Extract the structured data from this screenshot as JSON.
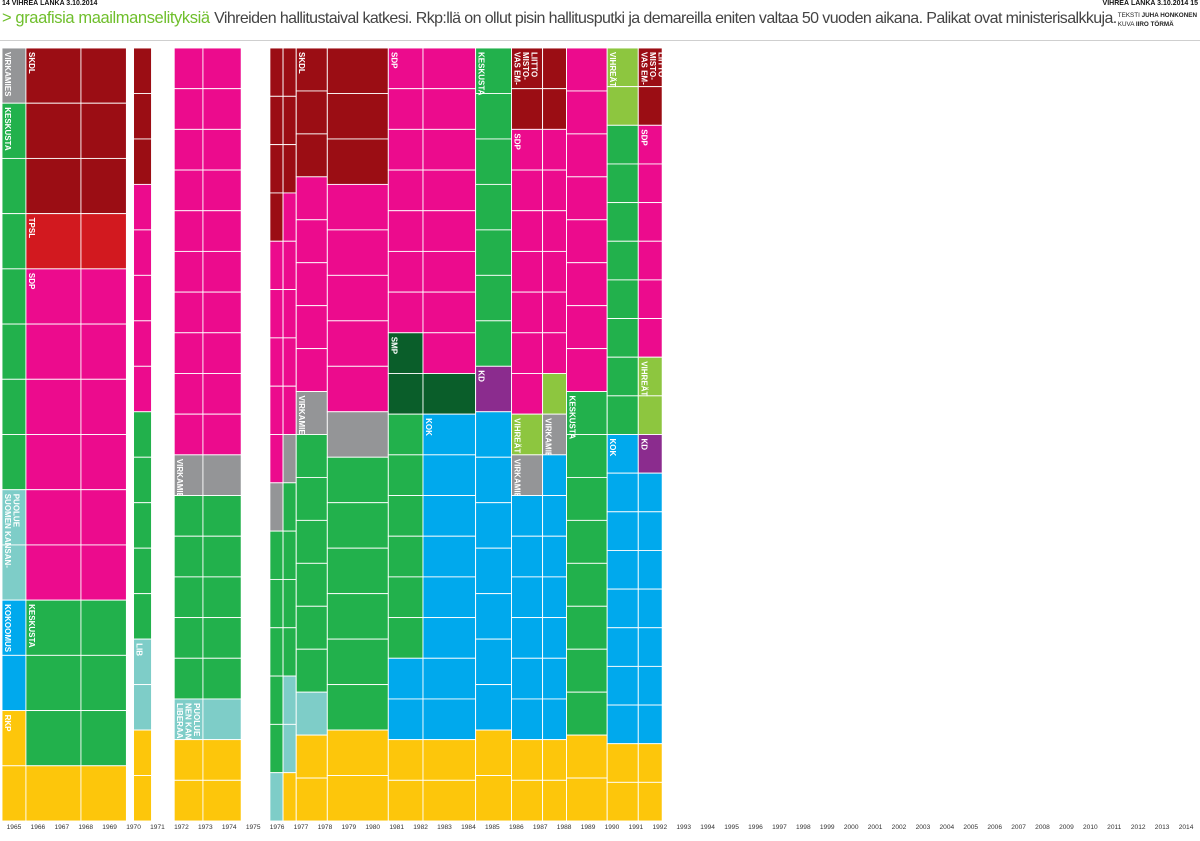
{
  "header": {
    "page_left": "14 VIHREÄ LANKA 3.10.2014",
    "page_right": "VIHREÄ LANKA 3.10.2014 15",
    "kicker": "> graafisia maailmanselityksiä",
    "deck": "Vihreiden hallitustaival katkesi. Rkp:llä on ollut pisin hallitusputki ja demareilla eniten valtaa 50 vuoden aikana. Palikat ovat ministerisalkkuja.",
    "credit_text_label": "TEKSTI",
    "credit_text_name": "JUHA HONKONEN",
    "credit_image_label": "KUVA",
    "credit_image_name": "IIRO TÖRMÄ"
  },
  "chart_data": {
    "type": "stacked-unit",
    "x_labels": [
      "1965",
      "1966",
      "1967",
      "1968",
      "1969",
      "1970",
      "1971",
      "1972",
      "1973",
      "1974",
      "1975",
      "1976",
      "1977",
      "1978",
      "1979",
      "1980",
      "1981",
      "1982",
      "1983",
      "1984",
      "1985",
      "1986",
      "1987",
      "1988",
      "1989",
      "1990",
      "1991",
      "1992",
      "1993",
      "1994",
      "1995",
      "1996",
      "1997",
      "1998",
      "1999",
      "2000",
      "2001",
      "2002",
      "2003",
      "2004",
      "2005",
      "2006",
      "2007",
      "2008",
      "2009",
      "2010",
      "2011",
      "2012",
      "2013",
      "2014"
    ],
    "party_colors": {
      "KESKUSTA": "#22b14c",
      "SKDL": "#9b0d14",
      "TPSL": "#d2191f",
      "SDP": "#ec0b8d",
      "VIRKAMIES": "#949597",
      "SUOMEN KANSANPUOLUE": "#7ecdc8",
      "KOKOOMUS": "#00a9ed",
      "RKP": "#fdc60b",
      "LIB": "#7ecdc8",
      "LIBERAALINEN KANSANPUOLUE": "#7ecdc8",
      "SMP": "#0a5e2a",
      "KD": "#8b2c8e",
      "VAS EM-MISTOLIITTO": "#9b0d14",
      "VIHREÄT": "#8dc63f",
      "KOK": "#00a9ed"
    },
    "cabinets": [
      {
        "from": 0,
        "to": 1,
        "seats": {
          "KESKUSTA": 7,
          "VIRKAMIES": 1,
          "SUOMEN KANSANPUOLUE": 2,
          "KOKOOMUS": 2,
          "RKP": 2
        },
        "labels": [
          "KESKUSTA",
          "VIRKAMIES",
          "SUOMEN KANSANPUOLUE",
          "KOKOOMUS",
          "RKP"
        ]
      },
      {
        "from": 1,
        "to": 3.3,
        "seats": {
          "SKDL": 3,
          "TPSL": 1,
          "SDP": 6,
          "KESKUSTA": 3,
          "RKP": 1
        },
        "labels": [
          "SKDL",
          "TPSL",
          "SDP",
          "KESKUSTA"
        ]
      },
      {
        "from": 3.3,
        "to": 5.2,
        "seats": {
          "SKDL": 3,
          "TPSL": 1,
          "SDP": 6,
          "KESKUSTA": 3,
          "RKP": 1
        },
        "labels": []
      },
      {
        "from": 5.5,
        "to": 6.25,
        "seats": {
          "SKDL": 3,
          "SDP": 5,
          "KESKUSTA": 5,
          "LIB": 2,
          "RKP": 2
        },
        "labels": [
          "LIB"
        ]
      },
      {
        "from": 7.2,
        "to": 8.4,
        "seats": {
          "SDP": 10,
          "VIRKAMIES": 1,
          "KESKUSTA": 5,
          "LIBERAALINEN KANSANPUOLUE": 1,
          "RKP": 2
        },
        "labels": [
          "VIRKAMIES",
          "LIBERAALINEN KANSANPUOLUE"
        ]
      },
      {
        "from": 8.4,
        "to": 10.0,
        "seats": {
          "SDP": 10,
          "VIRKAMIES": 1,
          "KESKUSTA": 5,
          "LIBERAALINEN KANSANPUOLUE": 1,
          "RKP": 2
        },
        "labels": []
      },
      {
        "from": 11.2,
        "to": 11.75,
        "seats": {
          "SKDL": 4,
          "SDP": 5,
          "VIRKAMIES": 1,
          "KESKUSTA": 5,
          "LIB": 1,
          "RKP": 0
        },
        "labels": []
      },
      {
        "from": 11.75,
        "to": 12.3,
        "seats": {
          "SKDL": 3,
          "SDP": 5,
          "VIRKAMIES": 1,
          "KESKUSTA": 4,
          "LIB": 2,
          "RKP": 1
        },
        "labels": []
      },
      {
        "from": 12.3,
        "to": 13.6,
        "seats": {
          "SKDL": 3,
          "SDP": 5,
          "VIRKAMIES": 1,
          "KESKUSTA": 6,
          "LIB": 1,
          "RKP": 2
        },
        "labels": [
          "SKDL",
          "VIRKAMIES"
        ]
      },
      {
        "from": 13.6,
        "to": 16.15,
        "seats": {
          "SKDL": 3,
          "SDP": 5,
          "VIRKAMIES": 1,
          "KESKUSTA": 6,
          "RKP": 2
        },
        "labels": []
      },
      {
        "from": 16.15,
        "to": 17.6,
        "seats": {
          "SDP": 7,
          "SMP": 2,
          "KESKUSTA": 6,
          "KOK": 2,
          "RKP": 2
        },
        "labels": [
          "SDP",
          "SMP"
        ]
      },
      {
        "from": 17.6,
        "to": 19.8,
        "seats": {
          "SDP": 8,
          "SMP": 1,
          "KOK": 8,
          "RKP": 2
        },
        "labels": [
          "KOK"
        ]
      },
      {
        "from": 19.8,
        "to": 21.3,
        "seats": {
          "KESKUSTA": 7,
          "KD": 1,
          "KOK": 7,
          "RKP": 2
        },
        "labels": [
          "KESKUSTA",
          "KD"
        ]
      },
      {
        "from": 21.3,
        "to": 22.6,
        "seats": {
          "VAS EM-MISTOLIITTO": 2,
          "SDP": 7,
          "VIHREÄT": 1,
          "VIRKAMIES": 1,
          "KOK": 6,
          "RKP": 2
        },
        "labels": [
          "VAS EM-MISTOLIITTO",
          "SDP",
          "VIHREÄT",
          "VIRKAMIES"
        ]
      },
      {
        "from": 22.6,
        "to": 23.6,
        "seats": {
          "VAS EM-MISTOLIITTO": 2,
          "SDP": 6,
          "VIHREÄT": 1,
          "VIRKAMIES": 1,
          "KOK": 7,
          "RKP": 2
        },
        "labels": [
          "VIRKAMIES"
        ]
      },
      {
        "from": 23.6,
        "to": 25.3,
        "seats": {
          "SDP": 8,
          "KESKUSTA": 8,
          "RKP": 2
        },
        "labels": [
          "KESKUSTA"
        ]
      },
      {
        "from": 25.3,
        "to": 26.6,
        "seats": {
          "VIHREÄT": 2,
          "KESKUSTA": 8,
          "KOK": 8,
          "RKP": 2
        },
        "labels": [
          "VIHREÄT",
          "KOK"
        ]
      },
      {
        "from": 26.6,
        "to": 27.6,
        "seats": {
          "VAS EM-MISTOLIITTO": 2,
          "SDP": 6,
          "VIHREÄT": 2,
          "KD": 1,
          "KOK": 7,
          "RKP": 2
        },
        "labels": [
          "VAS EM-MISTOLIITTO",
          "SDP",
          "VIHREÄT",
          "KD"
        ]
      }
    ],
    "party_label_text": {
      "KESKUSTA": "KESKUSTA",
      "SKDL": "SKDL",
      "TPSL": "TPSL",
      "SDP": "SDP",
      "VIRKAMIES": "VIRKAMIES",
      "SUOMEN KANSANPUOLUE": "SUOMEN KANSAN-PUOLUE",
      "KOKOOMUS": "KOKOOMUS",
      "RKP": "RKP",
      "LIB": "LIB",
      "LIBERAALINEN KANSANPUOLUE": "LIBERAALI-NEN KANSAN-PUOLUE",
      "SMP": "SMP",
      "KD": "KD",
      "VAS EM-MISTOLIITTO": "VAS EM-MISTO-LIITTO",
      "VIHREÄT": "VIHREÄT",
      "KOK": "KOK"
    },
    "party_order": [
      "SKDL",
      "VAS EM-MISTOLIITTO",
      "TPSL",
      "SDP",
      "SMP",
      "VIHREÄT",
      "VIRKAMIES",
      "KESKUSTA",
      "KD",
      "SUOMEN KANSANPUOLUE",
      "LIB",
      "LIBERAALINEN KANSANPUOLUE",
      "KOKOOMUS",
      "KOK",
      "RKP"
    ]
  }
}
